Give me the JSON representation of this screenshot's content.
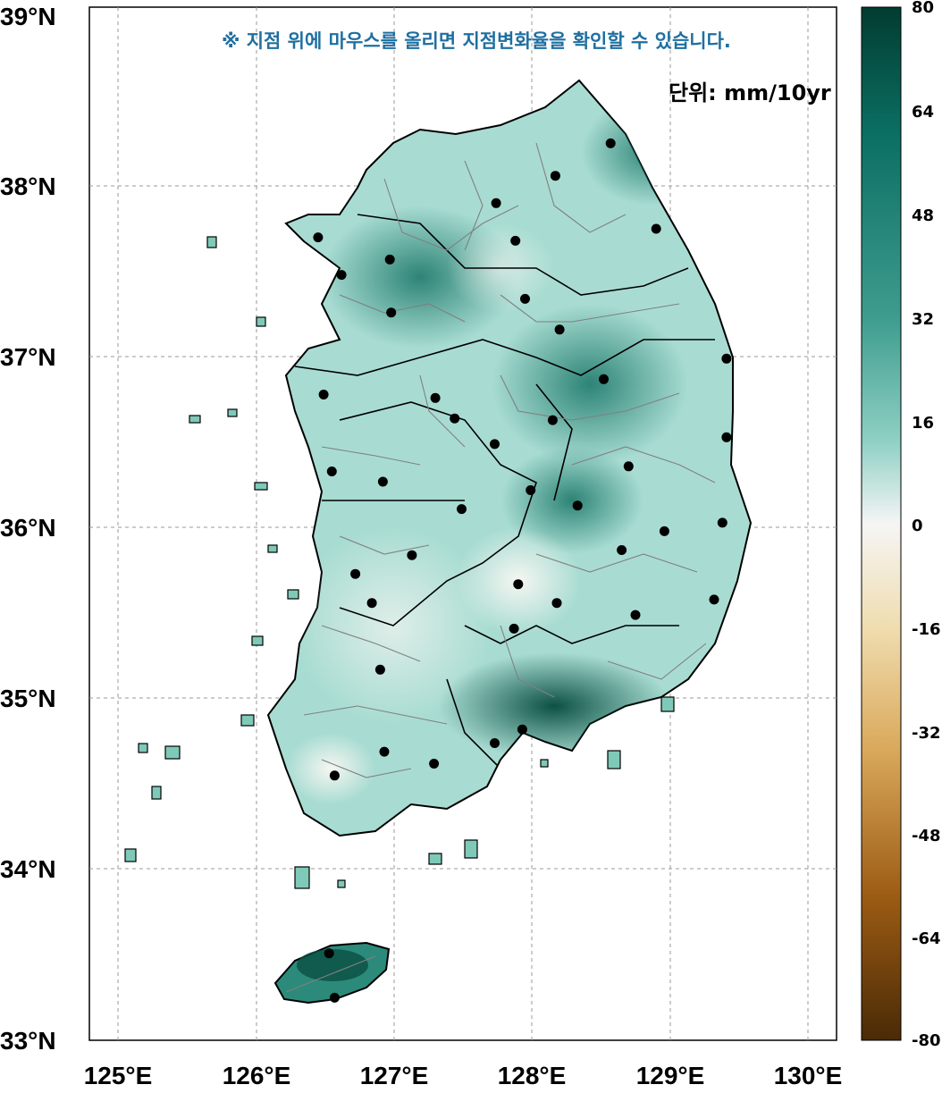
{
  "notice": "※ 지점 위에 마우스를 올리면 지점변화율을 확인할 수 있습니다.",
  "unit_label": "단위: mm/10yr",
  "lat_ticks": [
    "39°N",
    "38°N",
    "37°N",
    "36°N",
    "35°N",
    "34°N",
    "33°N"
  ],
  "lon_ticks": [
    "125°E",
    "126°E",
    "127°E",
    "128°E",
    "129°E",
    "130°E"
  ],
  "colorbar": {
    "ticks": [
      "80",
      "64",
      "48",
      "32",
      "16",
      "0",
      "-16",
      "-32",
      "-48",
      "-64",
      "-80"
    ],
    "colors": {
      "max": "#023c30",
      "high": "#0b6e62",
      "mid_high": "#3d9c8e",
      "low_pos": "#8fd0c4",
      "near_zero": "#f5f5f5",
      "low_neg": "#f0ddb0",
      "mid_neg": "#d9a85a",
      "high_neg": "#9c5c14",
      "min": "#4a2a06"
    }
  },
  "stations": [
    {
      "lon": 126.45,
      "lat": 37.7
    },
    {
      "lon": 126.62,
      "lat": 37.48
    },
    {
      "lon": 126.97,
      "lat": 37.57
    },
    {
      "lon": 126.98,
      "lat": 37.26
    },
    {
      "lon": 127.74,
      "lat": 37.9
    },
    {
      "lon": 128.17,
      "lat": 38.06
    },
    {
      "lon": 128.57,
      "lat": 38.25
    },
    {
      "lon": 127.88,
      "lat": 37.68
    },
    {
      "lon": 128.9,
      "lat": 37.75
    },
    {
      "lon": 127.95,
      "lat": 37.34
    },
    {
      "lon": 128.2,
      "lat": 37.16
    },
    {
      "lon": 129.41,
      "lat": 36.99
    },
    {
      "lon": 128.52,
      "lat": 36.87
    },
    {
      "lon": 126.49,
      "lat": 36.78
    },
    {
      "lon": 127.3,
      "lat": 36.76
    },
    {
      "lon": 127.44,
      "lat": 36.64
    },
    {
      "lon": 127.73,
      "lat": 36.49
    },
    {
      "lon": 128.15,
      "lat": 36.63
    },
    {
      "lon": 129.41,
      "lat": 36.53
    },
    {
      "lon": 126.55,
      "lat": 36.33
    },
    {
      "lon": 126.92,
      "lat": 36.27
    },
    {
      "lon": 128.7,
      "lat": 36.36
    },
    {
      "lon": 127.99,
      "lat": 36.22
    },
    {
      "lon": 127.49,
      "lat": 36.11
    },
    {
      "lon": 128.33,
      "lat": 36.13
    },
    {
      "lon": 129.38,
      "lat": 36.03
    },
    {
      "lon": 128.96,
      "lat": 35.98
    },
    {
      "lon": 128.65,
      "lat": 35.87
    },
    {
      "lon": 127.13,
      "lat": 35.84
    },
    {
      "lon": 126.72,
      "lat": 35.73
    },
    {
      "lon": 127.9,
      "lat": 35.67
    },
    {
      "lon": 128.18,
      "lat": 35.56
    },
    {
      "lon": 129.32,
      "lat": 35.58
    },
    {
      "lon": 126.84,
      "lat": 35.56
    },
    {
      "lon": 128.75,
      "lat": 35.49
    },
    {
      "lon": 127.87,
      "lat": 35.41
    },
    {
      "lon": 126.9,
      "lat": 35.17
    },
    {
      "lon": 127.93,
      "lat": 34.82
    },
    {
      "lon": 127.73,
      "lat": 34.74
    },
    {
      "lon": 126.93,
      "lat": 34.69
    },
    {
      "lon": 127.29,
      "lat": 34.62
    },
    {
      "lon": 126.57,
      "lat": 34.55
    },
    {
      "lon": 126.53,
      "lat": 33.51
    },
    {
      "lon": 126.57,
      "lat": 33.25
    }
  ]
}
